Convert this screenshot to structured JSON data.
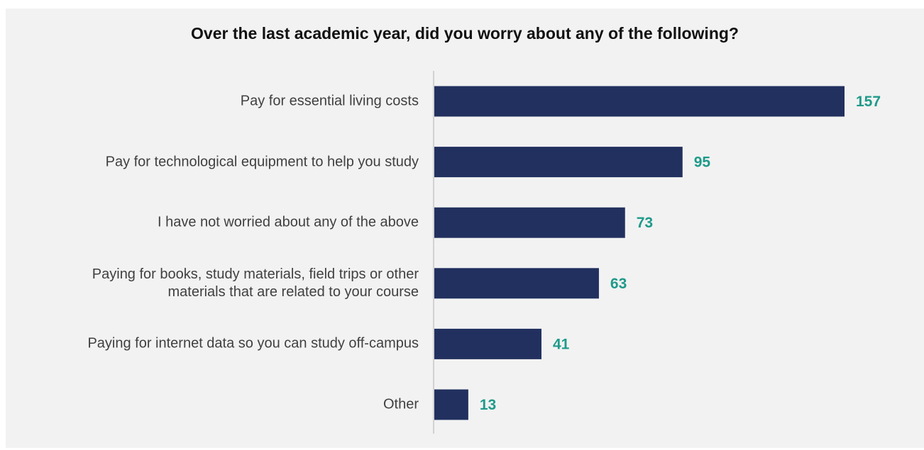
{
  "chart_data": {
    "type": "bar",
    "orientation": "horizontal",
    "title": "Over the last academic year, did you worry about any of the following?",
    "xlabel": "",
    "ylabel": "",
    "xlim": [
      0,
      157
    ],
    "grid": false,
    "legend": "none",
    "categories": [
      "Pay for essential living costs",
      "Pay for technological equipment to help you study",
      "I have not worried about any of the above",
      "Paying for books, study materials, field trips or other\nmaterials that are related to your course",
      "Paying for internet data so you can study off-campus",
      "Other"
    ],
    "values": [
      157,
      95,
      73,
      63,
      41,
      13
    ],
    "data_labels": [
      "157",
      "95",
      "73",
      "63",
      "41",
      "13"
    ],
    "colors": {
      "bar": "#21305e",
      "value_label": "#1e9a8a",
      "axis": "#c8c8c8",
      "background": "#f2f2f2"
    }
  }
}
